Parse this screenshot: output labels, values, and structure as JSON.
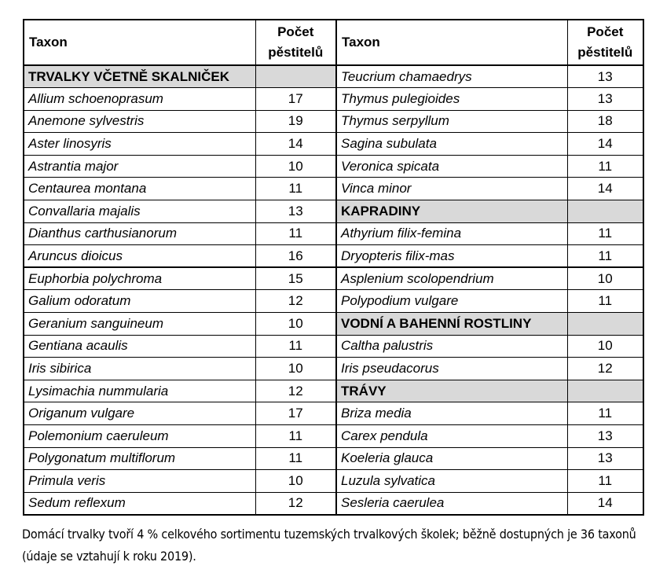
{
  "colors": {
    "section_bg": "#d9d9d9",
    "border": "#000000",
    "text": "#000000",
    "background": "#ffffff"
  },
  "table": {
    "taxon_header": "Taxon",
    "count_header": "Počet pěstitelů",
    "left_rows": [
      {
        "type": "section",
        "name": "TRVALKY VČETNĚ SKALNIČEK",
        "count": ""
      },
      {
        "type": "species",
        "name": "Allium schoenoprasum",
        "count": "17"
      },
      {
        "type": "species",
        "name": "Anemone sylvestris",
        "count": "19"
      },
      {
        "type": "species",
        "name": "Aster linosyris",
        "count": "14"
      },
      {
        "type": "species",
        "name": "Astrantia major",
        "count": "10"
      },
      {
        "type": "species",
        "name": "Centaurea montana",
        "count": "11"
      },
      {
        "type": "species",
        "name": "Convallaria majalis",
        "count": "13"
      },
      {
        "type": "species",
        "name": "Dianthus carthusianorum",
        "count": "11"
      },
      {
        "type": "species",
        "name": "Aruncus dioicus",
        "count": "16"
      },
      {
        "type": "species",
        "name": "Euphorbia polychroma",
        "count": "15"
      },
      {
        "type": "species",
        "name": "Galium odoratum",
        "count": "12"
      },
      {
        "type": "species",
        "name": "Geranium sanguineum",
        "count": "10"
      },
      {
        "type": "species",
        "name": "Gentiana acaulis",
        "count": "11"
      },
      {
        "type": "species",
        "name": "Iris sibirica",
        "count": "10"
      },
      {
        "type": "species",
        "name": "Lysimachia nummularia",
        "count": "12"
      },
      {
        "type": "species",
        "name": "Origanum vulgare",
        "count": "17"
      },
      {
        "type": "species",
        "name": "Polemonium caeruleum",
        "count": "11"
      },
      {
        "type": "species",
        "name": "Polygonatum multiflorum",
        "count": "11"
      },
      {
        "type": "species",
        "name": "Primula veris",
        "count": "10"
      },
      {
        "type": "species",
        "name": "Sedum reflexum",
        "count": "12"
      }
    ],
    "right_rows": [
      {
        "type": "species",
        "name": "Teucrium chamaedrys",
        "count": "13"
      },
      {
        "type": "species",
        "name": "Thymus pulegioides",
        "count": "13"
      },
      {
        "type": "species",
        "name": "Thymus serpyllum",
        "count": "18"
      },
      {
        "type": "species",
        "name": "Sagina subulata",
        "count": "14"
      },
      {
        "type": "species",
        "name": "Veronica spicata",
        "count": "11"
      },
      {
        "type": "species",
        "name": "Vinca minor",
        "count": "14"
      },
      {
        "type": "section",
        "name": "KAPRADINY",
        "count": ""
      },
      {
        "type": "species",
        "name": "Athyrium filix-femina",
        "count": "11"
      },
      {
        "type": "species",
        "name": "Dryopteris filix-mas",
        "count": "11"
      },
      {
        "type": "species",
        "name": "Asplenium scolopendrium",
        "count": "10"
      },
      {
        "type": "species",
        "name": "Polypodium vulgare",
        "count": "11"
      },
      {
        "type": "section",
        "name": "VODNÍ A BAHENNÍ ROSTLINY",
        "count": ""
      },
      {
        "type": "species",
        "name": "Caltha palustris",
        "count": "10"
      },
      {
        "type": "species",
        "name": "Iris pseudacorus",
        "count": "12"
      },
      {
        "type": "section",
        "name": "TRÁVY",
        "count": ""
      },
      {
        "type": "species",
        "name": "Briza media",
        "count": "11"
      },
      {
        "type": "species",
        "name": "Carex pendula",
        "count": "13"
      },
      {
        "type": "species",
        "name": "Koeleria glauca",
        "count": "13"
      },
      {
        "type": "species",
        "name": "Luzula sylvatica",
        "count": "11"
      },
      {
        "type": "species",
        "name": "Sesleria caerulea",
        "count": "14"
      }
    ]
  },
  "caption": "Domácí trvalky tvoří 4 % celkového sortimentu tuzemských trvalkových školek; běžně dostupných je 36 taxonů (údaje se vztahují k roku 2019)."
}
